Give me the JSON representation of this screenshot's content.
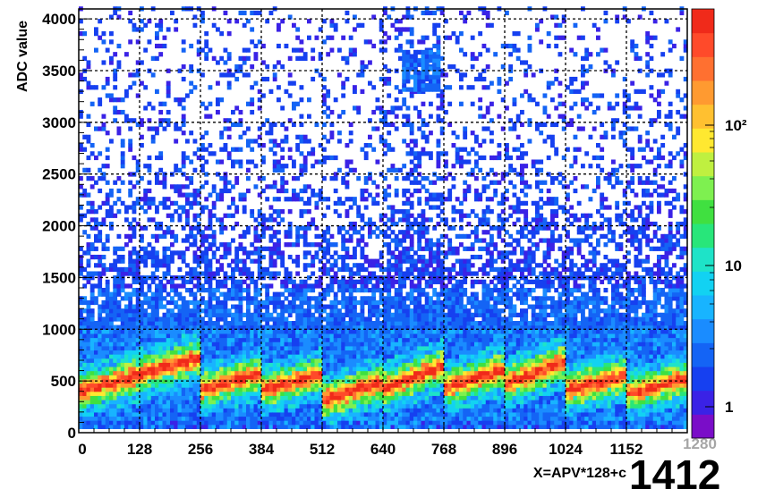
{
  "chart_data": {
    "type": "heatmap",
    "title": "",
    "xlabel": "X=APV*128+c",
    "ylabel": "ADC value",
    "xlim": [
      0,
      1280
    ],
    "ylim": [
      0,
      4096
    ],
    "x_ticks": [
      "0",
      "128",
      "256",
      "384",
      "512",
      "640",
      "768",
      "896",
      "1024",
      "1152"
    ],
    "y_ticks": [
      "0",
      "500",
      "1000",
      "1500",
      "2000",
      "2500",
      "3000",
      "3500",
      "4000"
    ],
    "z_scale": "log",
    "z_ticks": [
      "1",
      "10",
      "10²"
    ],
    "grid": true,
    "bin_width_x": 8,
    "bin_width_y": 40,
    "segments": [
      {
        "x_start": 0,
        "x_end": 256,
        "baseline_adc": [
          380,
          720
        ]
      },
      {
        "x_start": 256,
        "x_end": 384,
        "baseline_adc": [
          400,
          560
        ]
      },
      {
        "x_start": 384,
        "x_end": 512,
        "baseline_adc": [
          400,
          560
        ]
      },
      {
        "x_start": 512,
        "x_end": 640,
        "baseline_adc": [
          300,
          480
        ]
      },
      {
        "x_start": 640,
        "x_end": 768,
        "baseline_adc": [
          420,
          640
        ]
      },
      {
        "x_start": 768,
        "x_end": 896,
        "baseline_adc": [
          420,
          600
        ]
      },
      {
        "x_start": 896,
        "x_end": 1024,
        "baseline_adc": [
          460,
          680
        ]
      },
      {
        "x_start": 1024,
        "x_end": 1152,
        "baseline_adc": [
          400,
          540
        ]
      },
      {
        "x_start": 1152,
        "x_end": 1280,
        "baseline_adc": [
          360,
          520
        ]
      }
    ],
    "hot_spot": {
      "x_range": [
        680,
        760
      ],
      "y_range": [
        3300,
        3700
      ]
    },
    "colors": [
      "#7a0dc8",
      "#3a22e6",
      "#1640f0",
      "#1464f5",
      "#1a8cff",
      "#18b4ff",
      "#12d2f2",
      "#1ee3c8",
      "#28e67a",
      "#40e040",
      "#7ef050",
      "#bff040",
      "#ffe830",
      "#ffc030",
      "#ff9a30",
      "#ff7030",
      "#ff4a2a",
      "#f02a1a"
    ]
  },
  "overlay": {
    "corner_tick": "1280",
    "run_label": "1412"
  }
}
